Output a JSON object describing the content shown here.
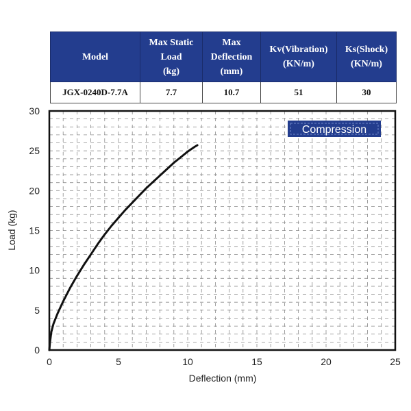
{
  "table": {
    "headers": [
      [
        "Model"
      ],
      [
        "Max Static",
        "Load",
        "(kg)"
      ],
      [
        "Max",
        "Deflection",
        "(mm)"
      ],
      [
        "Kv(Vibration)",
        "(KN/m)"
      ],
      [
        "Ks(Shock)",
        "(KN/m)"
      ]
    ],
    "row": [
      "JGX-0240D-7.7A",
      "7.7",
      "10.7",
      "51",
      "30"
    ]
  },
  "chart_data": {
    "type": "line",
    "xlabel": "Deflection (mm)",
    "ylabel": "Load (kg)",
    "xlim": [
      0,
      25
    ],
    "ylim": [
      0,
      30
    ],
    "xticks": [
      "0",
      "5",
      "10",
      "15",
      "20",
      "25"
    ],
    "yticks": [
      "0",
      "5",
      "10",
      "15",
      "20",
      "25",
      "30"
    ],
    "grid": true,
    "legend": {
      "label": "Compression",
      "placement": "top-right",
      "color": "#233d8e"
    },
    "line_color": "#111111",
    "series": [
      {
        "x": [
          0,
          0.05,
          0.15,
          0.3,
          0.6,
          1.0,
          1.5,
          2.0,
          2.5,
          3.0,
          3.5,
          4.0,
          4.5,
          5.0,
          5.5,
          6.0,
          6.5,
          7.0,
          7.5,
          8.0,
          8.5,
          9.0,
          9.5,
          10.0,
          10.5,
          10.7
        ],
        "y": [
          0,
          1.0,
          2.3,
          3.3,
          4.6,
          6.1,
          7.8,
          9.3,
          10.7,
          12.0,
          13.3,
          14.5,
          15.6,
          16.6,
          17.6,
          18.5,
          19.4,
          20.3,
          21.1,
          21.9,
          22.7,
          23.5,
          24.2,
          24.9,
          25.5,
          25.7
        ]
      }
    ]
  }
}
